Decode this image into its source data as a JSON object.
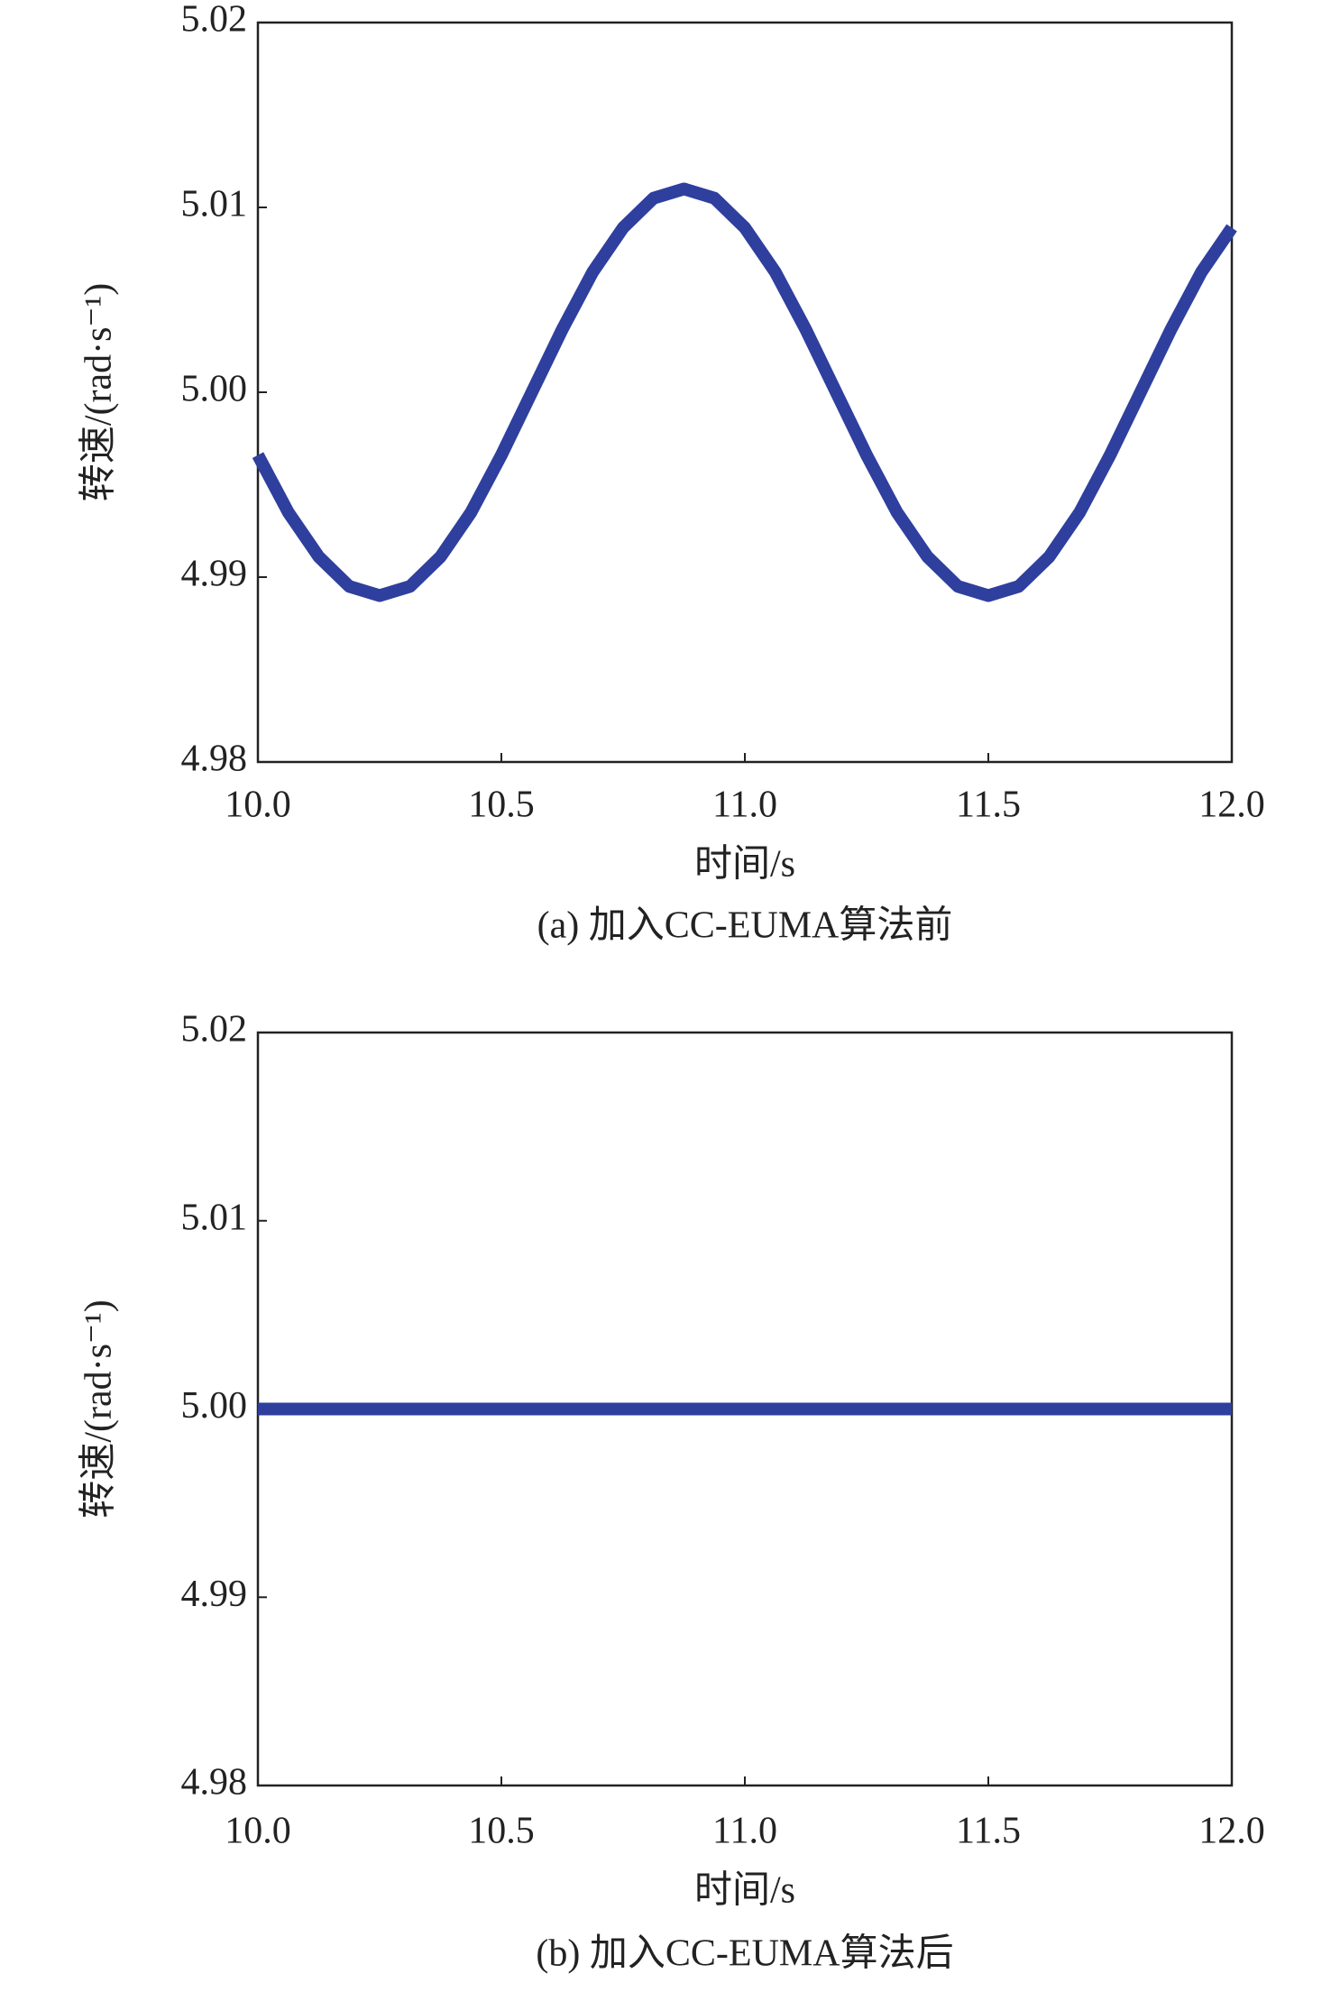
{
  "chart_data": [
    {
      "type": "line",
      "caption": "(a) 加入CC-EUMA算法前",
      "x_label": "时间/s",
      "y_label": "转速/(rad·s⁻¹)",
      "x": [
        10.0,
        10.0625,
        10.125,
        10.1875,
        10.25,
        10.3125,
        10.375,
        10.4375,
        10.5,
        10.5625,
        10.625,
        10.6875,
        10.75,
        10.8125,
        10.875,
        10.9375,
        11.0,
        11.0625,
        11.125,
        11.1875,
        11.25,
        11.3125,
        11.375,
        11.4375,
        11.5,
        11.5625,
        11.625,
        11.6875,
        11.75,
        11.8125,
        11.875,
        11.9375,
        12.0
      ],
      "values": [
        4.9966,
        4.9935,
        4.9911,
        4.9895,
        4.989,
        4.9895,
        4.9911,
        4.9935,
        4.9966,
        5.0,
        5.0034,
        5.0065,
        5.0089,
        5.0105,
        5.011,
        5.0105,
        5.0089,
        5.0065,
        5.0034,
        5.0,
        4.9966,
        4.9935,
        4.9911,
        4.9895,
        4.989,
        4.9895,
        4.9911,
        4.9935,
        4.9966,
        5.0,
        5.0034,
        5.0065,
        5.0089
      ],
      "color": "#2e3f9e",
      "xlim": [
        10,
        12
      ],
      "xticks": [
        {
          "value": 10,
          "label": "10.0"
        },
        10.5,
        {
          "value": 11,
          "label": "11.0"
        },
        11.5,
        {
          "value": 12,
          "label": "12.0"
        }
      ],
      "ylim": [
        4.98,
        5.02
      ],
      "yticks": [
        4.98,
        4.99,
        {
          "value": 5,
          "label": "5.00"
        },
        5.01,
        5.02
      ]
    },
    {
      "type": "line",
      "caption": "(b) 加入CC-EUMA算法后",
      "x_label": "时间/s",
      "y_label": "转速/(rad·s⁻¹)",
      "x": [
        10.0,
        12.0
      ],
      "values": [
        5.0,
        5.0
      ],
      "color": "#2e3f9e",
      "xlim": [
        10,
        12
      ],
      "xticks": [
        {
          "value": 10,
          "label": "10.0"
        },
        10.5,
        {
          "value": 11,
          "label": "11.0"
        },
        11.5,
        {
          "value": 12,
          "label": "12.0"
        }
      ],
      "ylim": [
        4.98,
        5.02
      ],
      "yticks": [
        4.98,
        4.99,
        {
          "value": 5,
          "label": "5.00"
        },
        5.01,
        5.02
      ]
    }
  ]
}
